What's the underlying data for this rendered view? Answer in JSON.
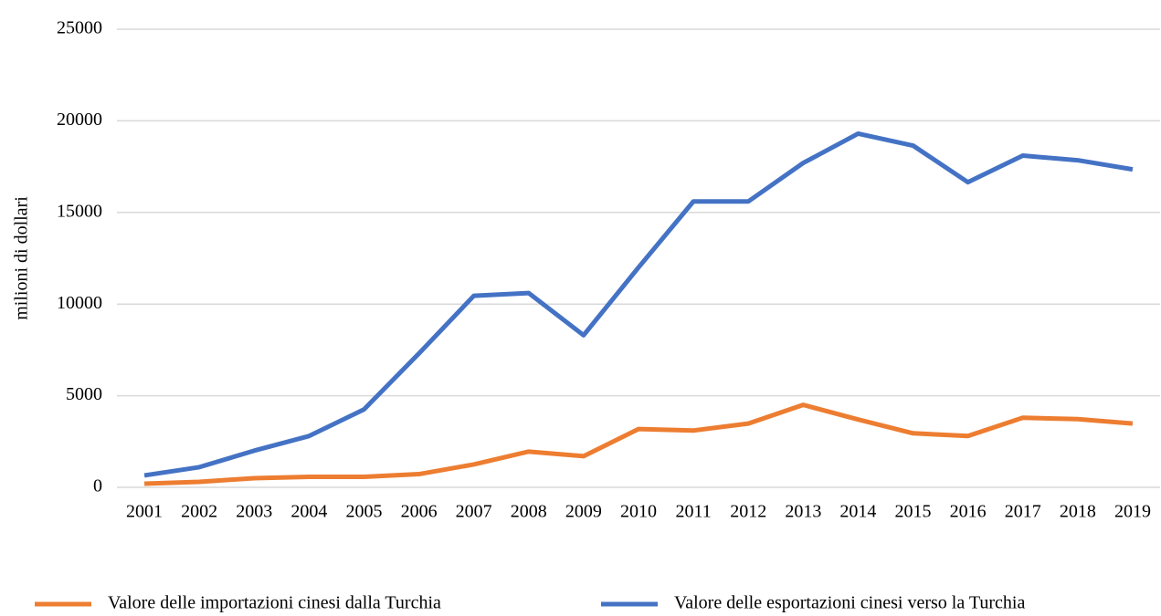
{
  "chart_data": {
    "type": "line",
    "y_label": "milioni di dollari",
    "categories": [
      "2001",
      "2002",
      "2003",
      "2004",
      "2005",
      "2006",
      "2007",
      "2008",
      "2009",
      "2010",
      "2011",
      "2012",
      "2013",
      "2014",
      "2015",
      "2016",
      "2017",
      "2018",
      "2019"
    ],
    "series": [
      {
        "name": "Valore delle importazioni cinesi dalla Turchia",
        "color": "#ed7d31",
        "values": [
          200,
          300,
          500,
          570,
          570,
          720,
          1250,
          1950,
          1700,
          3180,
          3100,
          3480,
          4500,
          3700,
          2950,
          2800,
          3800,
          3720,
          3480
        ]
      },
      {
        "name": "Valore delle esportazioni cinesi verso la Turchia",
        "color": "#4472c4",
        "values": [
          650,
          1100,
          2000,
          2800,
          4250,
          7300,
          10450,
          10600,
          8300,
          12000,
          15600,
          15600,
          17700,
          19300,
          18650,
          16650,
          18100,
          17850,
          17350
        ]
      }
    ],
    "ylim": [
      0,
      25000
    ],
    "yticks": [
      0,
      5000,
      10000,
      15000,
      20000,
      25000
    ],
    "grid": true,
    "legend": "bottom"
  }
}
